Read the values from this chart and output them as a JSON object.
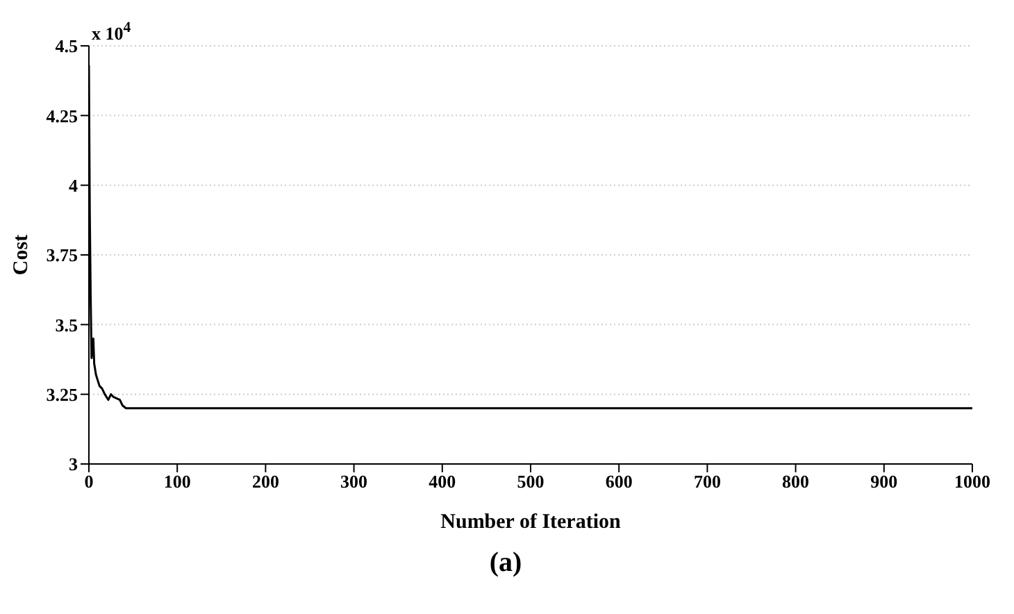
{
  "chart_data": {
    "type": "line",
    "xlabel": "Number of Iteration",
    "ylabel": "Cost",
    "annotations": [
      "x 10$^{4}$",
      "(a)"
    ],
    "x": [
      0,
      1,
      2,
      3,
      5,
      6,
      8,
      10,
      12,
      15,
      18,
      22,
      25,
      28,
      35,
      38,
      42,
      1000
    ],
    "series": [
      {
        "color": "#000000",
        "values": [
          4.43,
          3.9,
          3.6,
          3.38,
          3.45,
          3.36,
          3.32,
          3.3,
          3.28,
          3.27,
          3.25,
          3.23,
          3.25,
          3.24,
          3.23,
          3.21,
          3.2,
          3.2
        ]
      }
    ],
    "xlim": [
      0,
      1000
    ],
    "xticks": [
      0,
      100,
      200,
      300,
      400,
      500,
      600,
      700,
      800,
      900,
      1000
    ],
    "ylim": [
      3,
      4.5
    ],
    "yticks": [
      3,
      3.25,
      3.5,
      3.75,
      4,
      4.25,
      4.5
    ],
    "grid": "y",
    "marker": "none",
    "line_style": "solid"
  }
}
